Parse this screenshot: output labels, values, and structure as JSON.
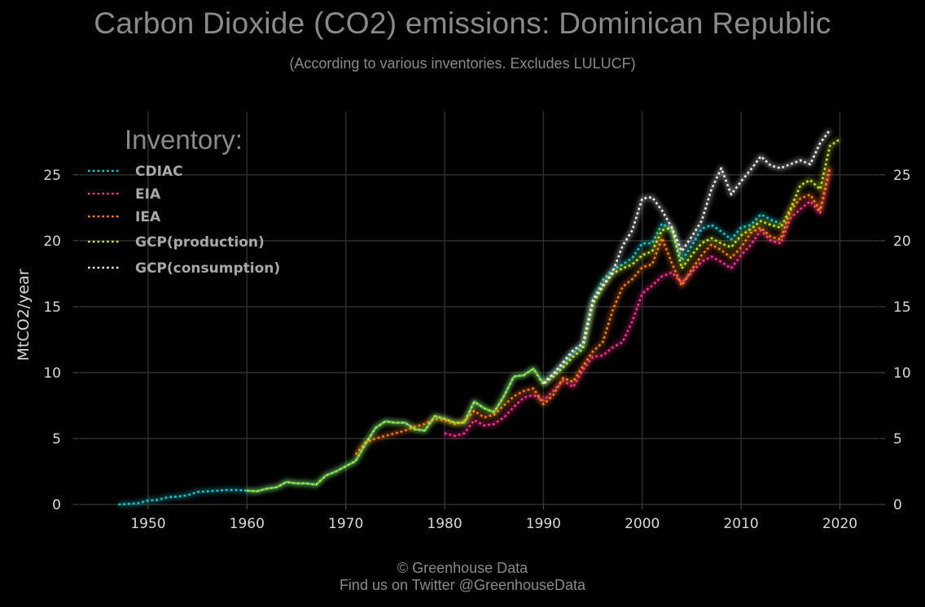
{
  "chart_data": {
    "type": "line",
    "title": "Carbon Dioxide (CO2) emissions: Dominican Republic",
    "subtitle": "(According to various inventories. Excludes LULUCF)",
    "ylabel": "MtCO2/year",
    "xlabel": "",
    "xlim": [
      1943,
      2024
    ],
    "ylim": [
      0,
      29
    ],
    "x_ticks": [
      1950,
      1960,
      1970,
      1980,
      1990,
      2000,
      2010,
      2020
    ],
    "y_ticks": [
      0,
      5,
      10,
      15,
      20,
      25
    ],
    "grid": true,
    "legend_title": "Inventory:",
    "legend_position": "top-left",
    "series": [
      {
        "name": "CDIAC",
        "color": "#17c7d2",
        "x": [
          1947,
          1948,
          1949,
          1950,
          1951,
          1952,
          1953,
          1954,
          1955,
          1956,
          1957,
          1958,
          1959,
          1960,
          1961,
          1962,
          1963,
          1964,
          1965,
          1966,
          1967,
          1968,
          1969,
          1970,
          1971,
          1972,
          1973,
          1974,
          1975,
          1976,
          1977,
          1978,
          1979,
          1980,
          1981,
          1982,
          1983,
          1984,
          1985,
          1986,
          1987,
          1988,
          1989,
          1990,
          1991,
          1992,
          1993,
          1994,
          1995,
          1996,
          1997,
          1998,
          1999,
          2000,
          2001,
          2002,
          2003,
          2004,
          2005,
          2006,
          2007,
          2008,
          2009,
          2010,
          2011,
          2012,
          2013,
          2014
        ],
        "y": [
          0.0,
          0.05,
          0.1,
          0.3,
          0.35,
          0.55,
          0.6,
          0.7,
          0.95,
          1.0,
          1.05,
          1.1,
          1.1,
          1.05,
          1.0,
          1.2,
          1.3,
          1.7,
          1.6,
          1.6,
          1.5,
          2.2,
          2.5,
          2.9,
          3.3,
          4.6,
          5.8,
          6.3,
          6.2,
          6.2,
          5.7,
          5.6,
          6.7,
          6.5,
          6.2,
          6.2,
          7.8,
          7.3,
          7.0,
          8.2,
          9.7,
          9.8,
          10.3,
          9.2,
          9.9,
          10.6,
          11.5,
          12.0,
          15.5,
          17.0,
          17.8,
          18.2,
          18.7,
          19.8,
          19.8,
          21.3,
          20.8,
          18.5,
          19.6,
          20.9,
          21.2,
          20.7,
          20.1,
          21.0,
          21.2,
          22.0,
          21.6,
          21.3
        ]
      },
      {
        "name": "EIA",
        "color": "#ff2f92",
        "x": [
          1980,
          1981,
          1982,
          1983,
          1984,
          1985,
          1986,
          1987,
          1988,
          1989,
          1990,
          1991,
          1992,
          1993,
          1994,
          1995,
          1996,
          1997,
          1998,
          1999,
          2000,
          2001,
          2002,
          2003,
          2004,
          2005,
          2006,
          2007,
          2008,
          2009,
          2010,
          2011,
          2012,
          2013,
          2014,
          2015,
          2016,
          2017,
          2018,
          2019
        ],
        "y": [
          5.4,
          5.2,
          5.4,
          6.4,
          6.0,
          6.1,
          6.6,
          7.4,
          8.1,
          8.3,
          7.9,
          8.6,
          9.4,
          8.9,
          10.2,
          11.2,
          11.3,
          11.9,
          12.3,
          13.9,
          16.0,
          16.6,
          17.3,
          17.6,
          16.8,
          17.6,
          18.4,
          18.8,
          18.4,
          17.9,
          18.9,
          19.7,
          20.8,
          20.0,
          19.8,
          21.7,
          22.4,
          23.0,
          22.1,
          25.5
        ]
      },
      {
        "name": "IEA",
        "color": "#ff7f0e",
        "x": [
          1971,
          1972,
          1973,
          1974,
          1975,
          1976,
          1977,
          1978,
          1979,
          1980,
          1981,
          1982,
          1983,
          1984,
          1985,
          1986,
          1987,
          1988,
          1989,
          1990,
          1991,
          1992,
          1993,
          1994,
          1995,
          1996,
          1997,
          1998,
          1999,
          2000,
          2001,
          2002,
          2003,
          2004,
          2005,
          2006,
          2007,
          2008,
          2009,
          2010,
          2011,
          2012,
          2013,
          2014,
          2015,
          2016,
          2017,
          2018,
          2019
        ],
        "y": [
          3.8,
          4.7,
          5.0,
          5.2,
          5.4,
          5.6,
          5.9,
          6.1,
          6.5,
          6.4,
          6.1,
          6.3,
          7.1,
          6.6,
          6.8,
          7.5,
          8.2,
          8.6,
          8.8,
          7.6,
          8.3,
          9.6,
          9.3,
          10.5,
          11.6,
          12.3,
          14.7,
          16.5,
          17.1,
          18.0,
          18.2,
          20.2,
          18.3,
          16.6,
          17.8,
          18.9,
          19.7,
          19.3,
          18.7,
          19.5,
          20.6,
          21.0,
          20.3,
          20.1,
          22.3,
          23.2,
          23.5,
          22.3,
          25.6
        ]
      },
      {
        "name": "GCP(production)",
        "color": "#c6e817",
        "x": [
          1960,
          1961,
          1962,
          1963,
          1964,
          1965,
          1966,
          1967,
          1968,
          1969,
          1970,
          1971,
          1972,
          1973,
          1974,
          1975,
          1976,
          1977,
          1978,
          1979,
          1980,
          1981,
          1982,
          1983,
          1984,
          1985,
          1986,
          1987,
          1988,
          1989,
          1990,
          1991,
          1992,
          1993,
          1994,
          1995,
          1996,
          1997,
          1998,
          1999,
          2000,
          2001,
          2002,
          2003,
          2004,
          2005,
          2006,
          2007,
          2008,
          2009,
          2010,
          2011,
          2012,
          2013,
          2014,
          2015,
          2016,
          2017,
          2018,
          2019,
          2020
        ],
        "y": [
          1.05,
          1.0,
          1.2,
          1.3,
          1.7,
          1.6,
          1.6,
          1.5,
          2.2,
          2.5,
          2.9,
          3.3,
          4.6,
          5.8,
          6.3,
          6.2,
          6.2,
          5.7,
          5.6,
          6.7,
          6.5,
          6.2,
          6.2,
          7.8,
          7.3,
          7.0,
          8.2,
          9.7,
          9.8,
          10.3,
          9.1,
          9.7,
          10.4,
          11.2,
          11.8,
          15.2,
          16.5,
          17.5,
          17.9,
          18.2,
          18.9,
          19.2,
          20.8,
          21.0,
          17.9,
          18.9,
          19.8,
          20.2,
          19.8,
          19.5,
          20.4,
          20.9,
          21.5,
          21.2,
          21.0,
          22.4,
          24.2,
          24.6,
          23.9,
          27.2,
          27.7
        ]
      },
      {
        "name": "GCP(consumption)",
        "color": "#f2f2f2",
        "x": [
          1990,
          1991,
          1992,
          1993,
          1994,
          1995,
          1996,
          1997,
          1998,
          1999,
          2000,
          2001,
          2002,
          2003,
          2004,
          2005,
          2006,
          2007,
          2008,
          2009,
          2010,
          2011,
          2012,
          2013,
          2014,
          2015,
          2016,
          2017,
          2018,
          2019
        ],
        "y": [
          9.2,
          9.9,
          10.8,
          11.7,
          12.2,
          15.5,
          16.6,
          17.6,
          19.6,
          20.8,
          23.2,
          23.3,
          22.3,
          21.0,
          19.2,
          20.3,
          21.5,
          23.9,
          25.5,
          23.5,
          24.5,
          25.4,
          26.4,
          25.7,
          25.5,
          25.8,
          26.1,
          25.8,
          27.4,
          28.4
        ]
      }
    ]
  },
  "footer": {
    "line1": "© Greenhouse Data",
    "line2": "Find us on Twitter @GreenhouseData"
  }
}
